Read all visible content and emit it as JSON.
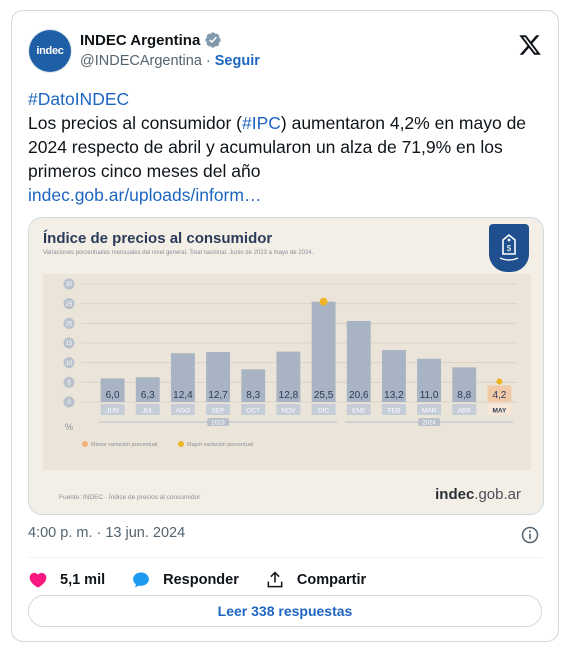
{
  "account": {
    "avatar_text": "indec",
    "display_name": "INDEC Argentina",
    "handle": "@INDECArgentina",
    "separator": "·",
    "follow_label": "Seguir"
  },
  "tweet": {
    "line1_hashtag": "#DatoINDEC",
    "text_a": "Los precios al consumidor (",
    "hashtag_ipc": "#IPC",
    "text_b": ") aumentaron 4,2% en mayo de 2024 respecto de abril y acumularon un alza de 71,9% en los primeros cinco meses del año",
    "link": "indec.gob.ar/uploads/inform…"
  },
  "media": {
    "title": "Índice de precios al consumidor",
    "subtitle": "Variaciones porcentuales mensuales del nivel general. Total nacional. Junio de 2023 a mayo de 2024.",
    "source": "Fuente: INDEC - Índice de precios al consumidor",
    "brand_a": "indec",
    "brand_b": ".gob.ar",
    "legend_min": "Menor variación porcentual",
    "legend_max": "Mayor variación porcentual",
    "year_2023": "2023",
    "year_2024": "2024",
    "pct": "%"
  },
  "chart_data": {
    "type": "bar",
    "title": "Índice de precios al consumidor",
    "categories": [
      "JUN",
      "JUL",
      "AGO",
      "SEP",
      "OCT",
      "NOV",
      "DIC",
      "ENE",
      "FEB",
      "MAR",
      "ABR",
      "MAY"
    ],
    "values": [
      6.0,
      6.3,
      12.4,
      12.7,
      8.3,
      12.8,
      25.5,
      20.6,
      13.2,
      11.0,
      8.8,
      4.2
    ],
    "value_labels": [
      "6,0",
      "6,3",
      "12,4",
      "12,7",
      "8,3",
      "12,8",
      "25,5",
      "20,6",
      "13,2",
      "11,0",
      "8,8",
      "4,2"
    ],
    "yticks": [
      0,
      5,
      10,
      15,
      20,
      25,
      30
    ],
    "ylim": [
      0,
      30
    ],
    "grid": true,
    "colors": {
      "bar": "#a8b3c4",
      "bar_highlight": "#f2c9a6",
      "max_dot": "#f0b429",
      "label_bg": "#c5cdd9"
    }
  },
  "footer": {
    "timestamp": "4:00 p. m. · 13 jun. 2024",
    "likes": "5,1 mil",
    "reply_label": "Responder",
    "share_label": "Compartir",
    "replies_button": "Leer 338 respuestas"
  },
  "colors": {
    "accent": "#1d65c1",
    "like": "#f91880",
    "reply": "#1d9bf0"
  }
}
